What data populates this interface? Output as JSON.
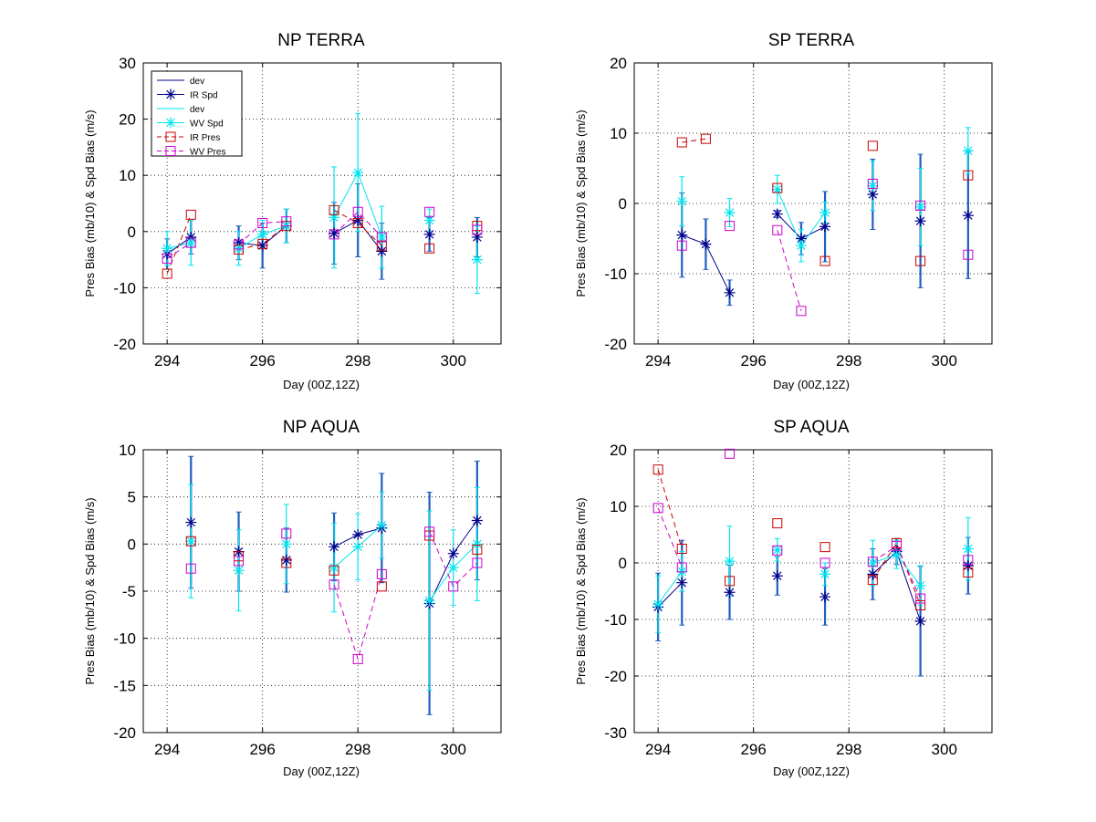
{
  "colors": {
    "ir_spd": "#00008b",
    "wv_spd": "#00e5ee",
    "ir_pres": "#cc0000",
    "wv_pres": "#cc00cc",
    "ir_dev": "#00008b",
    "wv_dev": "#00e5ee",
    "thick_dev": "#1f5fbf"
  },
  "legend": {
    "entries": [
      {
        "label": "dev",
        "series": "ir_dev"
      },
      {
        "label": "IR Spd",
        "series": "ir_spd"
      },
      {
        "label": "dev",
        "series": "wv_dev"
      },
      {
        "label": "WV Spd",
        "series": "wv_spd"
      },
      {
        "label": "IR Pres",
        "series": "ir_pres"
      },
      {
        "label": "WV Pres",
        "series": "wv_pres"
      }
    ]
  },
  "chart_data": [
    {
      "type": "line",
      "title": "NP TERRA",
      "xlabel": "Day (00Z,12Z)",
      "ylabel": "Pres Bias (mb/10) & Spd Bias (m/s)",
      "xlim": [
        293.5,
        301
      ],
      "ylim": [
        -20,
        30
      ],
      "xticks": [
        294,
        296,
        298,
        300
      ],
      "yticks": [
        -20,
        -10,
        0,
        10,
        20,
        30
      ],
      "grid": true,
      "legend": "top-left",
      "series": {
        "ir_spd": [
          [
            [
              294.0,
              -4.0,
              2.7
            ],
            [
              294.5,
              -1.0,
              3.0
            ]
          ],
          [
            [
              295.5,
              -2.0,
              3.0
            ],
            [
              296.0,
              -2.5,
              4.0
            ],
            [
              296.5,
              1.0,
              3.0
            ]
          ],
          [
            [
              297.5,
              -0.3,
              5.5
            ],
            [
              298.0,
              2.0,
              6.5
            ],
            [
              298.5,
              -3.5,
              5.0
            ]
          ],
          [
            [
              299.5,
              -0.5,
              3.0
            ]
          ],
          [
            [
              300.5,
              -1.0,
              3.5
            ]
          ]
        ],
        "wv_spd": [
          [
            [
              294.0,
              -3.0,
              3.0
            ],
            [
              294.5,
              -2.0,
              4.0
            ]
          ],
          [
            [
              295.5,
              -3.0,
              3.0
            ],
            [
              296.0,
              -0.5,
              2.5
            ],
            [
              296.5,
              1.0,
              3.0
            ]
          ],
          [
            [
              297.5,
              2.5,
              9.0
            ],
            [
              298.0,
              10.5,
              10.5
            ],
            [
              298.5,
              -1.0,
              5.5
            ]
          ],
          [
            [
              299.5,
              2.0,
              2.0
            ]
          ],
          [
            [
              300.5,
              -5.0,
              6.0
            ]
          ]
        ],
        "ir_pres": [
          [
            [
              294.0,
              -7.5
            ],
            [
              294.5,
              3.0
            ]
          ],
          [
            [
              295.5,
              -3.2
            ],
            [
              296.0,
              -2.2
            ],
            [
              296.5,
              1.0
            ]
          ],
          [
            [
              297.5,
              3.8
            ],
            [
              298.0,
              1.5
            ],
            [
              298.5,
              -2.5
            ]
          ],
          [
            [
              299.5,
              -3.0
            ]
          ],
          [
            [
              300.5,
              1.0
            ]
          ]
        ],
        "wv_pres": [
          [
            [
              294.0,
              -4.8
            ],
            [
              294.5,
              -2.0
            ]
          ],
          [
            [
              295.5,
              -2.3
            ],
            [
              296.0,
              1.5
            ],
            [
              296.5,
              1.8
            ]
          ],
          [
            [
              297.5,
              -0.5
            ],
            [
              298.0,
              3.5
            ],
            [
              298.5,
              -1.0
            ]
          ],
          [
            [
              299.5,
              3.5
            ]
          ],
          [
            [
              300.5,
              0.3
            ]
          ]
        ]
      }
    },
    {
      "type": "line",
      "title": "SP TERRA",
      "xlabel": "Day (00Z,12Z)",
      "ylabel": "Pres Bias (mb/10) & Spd Bias (m/s)",
      "xlim": [
        293.5,
        301
      ],
      "ylim": [
        -20,
        20
      ],
      "xticks": [
        294,
        296,
        298,
        300
      ],
      "yticks": [
        -20,
        -10,
        0,
        10,
        20
      ],
      "grid": true,
      "series": {
        "ir_spd": [
          [
            [
              294.5,
              -4.5,
              6.0
            ],
            [
              295.0,
              -5.8,
              3.6
            ],
            [
              295.5,
              -12.7,
              1.8
            ]
          ],
          [
            [
              296.5,
              -1.5,
              0.5
            ],
            [
              297.0,
              -5.0,
              2.3
            ],
            [
              297.5,
              -3.3,
              5.0
            ]
          ],
          [
            [
              298.5,
              1.3,
              5.0
            ]
          ],
          [
            [
              299.5,
              -2.5,
              9.5
            ]
          ],
          [
            [
              300.5,
              -1.7,
              9.0
            ]
          ]
        ],
        "wv_spd": [
          [
            [
              294.5,
              0.3,
              3.5
            ]
          ],
          [
            [
              295.5,
              -1.3,
              2.0
            ]
          ],
          [
            [
              296.5,
              2.0,
              2.0
            ],
            [
              297.0,
              -6.0,
              2.3
            ],
            [
              297.5,
              -1.3,
              1.5
            ]
          ],
          [
            [
              298.5,
              2.5,
              3.5
            ]
          ],
          [
            [
              299.5,
              -0.5,
              5.5
            ]
          ],
          [
            [
              300.5,
              7.5,
              3.3
            ]
          ]
        ],
        "ir_pres": [
          [
            [
              294.5,
              8.7
            ],
            [
              295.0,
              9.2
            ]
          ],
          [
            [
              296.5,
              2.2
            ]
          ],
          [
            [
              297.5,
              -8.2
            ]
          ],
          [
            [
              298.5,
              8.2
            ]
          ],
          [
            [
              299.5,
              -8.2
            ]
          ],
          [
            [
              300.5,
              4.0
            ]
          ]
        ],
        "wv_pres": [
          [
            [
              294.5,
              -6.0
            ]
          ],
          [
            [
              295.5,
              -3.2
            ]
          ],
          [
            [
              296.5,
              -3.8
            ],
            [
              297.0,
              -15.3
            ]
          ],
          [
            [
              298.5,
              2.8
            ]
          ],
          [
            [
              299.5,
              -0.3
            ]
          ],
          [
            [
              300.5,
              -7.3
            ]
          ]
        ]
      }
    },
    {
      "type": "line",
      "title": "NP AQUA",
      "xlabel": "Day (00Z,12Z)",
      "ylabel": "Pres Bias (mb/10) & Spd Bias (m/s)",
      "xlim": [
        293.5,
        301
      ],
      "ylim": [
        -20,
        10
      ],
      "xticks": [
        294,
        296,
        298,
        300
      ],
      "yticks": [
        -20,
        -15,
        -10,
        -5,
        0,
        5,
        10
      ],
      "grid": true,
      "series": {
        "ir_spd": [
          [
            [
              294.5,
              2.3,
              7.0
            ]
          ],
          [
            [
              295.5,
              -0.8,
              4.2
            ]
          ],
          [
            [
              296.5,
              -1.7,
              3.4
            ]
          ],
          [
            [
              297.5,
              -0.3,
              3.6
            ],
            [
              298.0,
              1.0,
              0.0
            ],
            [
              298.5,
              1.7,
              5.8
            ]
          ],
          [
            [
              299.5,
              -6.3,
              11.8
            ],
            [
              300.0,
              -1.0,
              0.0
            ],
            [
              300.5,
              2.5,
              6.3
            ]
          ]
        ],
        "wv_spd": [
          [
            [
              294.5,
              0.3,
              6.0
            ]
          ],
          [
            [
              295.5,
              -2.8,
              4.3
            ]
          ],
          [
            [
              296.5,
              0.0,
              4.2
            ]
          ],
          [
            [
              297.5,
              -2.5,
              4.7
            ],
            [
              298.0,
              -0.3,
              3.5
            ],
            [
              298.5,
              2.0,
              3.5
            ]
          ],
          [
            [
              299.5,
              -6.0,
              9.5
            ],
            [
              300.0,
              -2.5,
              4.0
            ],
            [
              300.5,
              0.0,
              6.0
            ]
          ]
        ],
        "ir_pres": [
          [
            [
              294.5,
              0.3
            ]
          ],
          [
            [
              295.5,
              -1.3
            ]
          ],
          [
            [
              296.5,
              -2.0
            ]
          ],
          [
            [
              297.5,
              -2.8
            ]
          ],
          [
            [
              298.5,
              -4.5
            ]
          ],
          [
            [
              299.5,
              0.9
            ]
          ],
          [
            [
              300.5,
              -0.6
            ]
          ]
        ],
        "wv_pres": [
          [
            [
              294.5,
              -2.6
            ]
          ],
          [
            [
              295.5,
              -1.8
            ]
          ],
          [
            [
              296.5,
              1.1
            ]
          ],
          [
            [
              297.5,
              -4.3
            ],
            [
              298.0,
              -12.2
            ],
            [
              298.5,
              -3.2
            ]
          ],
          [
            [
              299.5,
              1.3
            ],
            [
              300.0,
              -4.5
            ],
            [
              300.5,
              -2.0
            ]
          ]
        ]
      }
    },
    {
      "type": "line",
      "title": "SP AQUA",
      "xlabel": "Day (00Z,12Z)",
      "ylabel": "Pres Bias (mb/10) & Spd Bias (m/s)",
      "xlim": [
        293.5,
        301
      ],
      "ylim": [
        -30,
        20
      ],
      "xticks": [
        294,
        296,
        298,
        300
      ],
      "yticks": [
        -30,
        -20,
        -10,
        0,
        10,
        20
      ],
      "grid": true,
      "series": {
        "ir_spd": [
          [
            [
              294.0,
              -7.8,
              6.0
            ],
            [
              294.5,
              -3.5,
              7.5
            ]
          ],
          [
            [
              295.5,
              -5.2,
              4.8
            ]
          ],
          [
            [
              296.5,
              -2.3,
              3.4
            ]
          ],
          [
            [
              297.5,
              -6.0,
              5.0
            ]
          ],
          [
            [
              298.5,
              -2.0,
              4.5
            ],
            [
              299.0,
              2.0,
              2.3
            ],
            [
              299.5,
              -10.3,
              9.7
            ]
          ],
          [
            [
              300.5,
              -0.5,
              5.0
            ]
          ]
        ],
        "wv_spd": [
          [
            [
              294.0,
              -7.3,
              5.0
            ],
            [
              294.5,
              -1.5,
              3.5
            ]
          ],
          [
            [
              295.5,
              0.3,
              6.2
            ]
          ],
          [
            [
              296.5,
              2.3,
              2.0
            ]
          ],
          [
            [
              297.5,
              -2.0,
              2.0
            ]
          ],
          [
            [
              298.5,
              0.0,
              4.0
            ],
            [
              299.0,
              1.5,
              2.5
            ],
            [
              299.5,
              -4.0,
              3.5
            ]
          ],
          [
            [
              300.5,
              2.5,
              5.5
            ]
          ]
        ],
        "ir_pres": [
          [
            [
              294.0,
              16.5
            ],
            [
              294.5,
              2.5
            ]
          ],
          [
            [
              295.5,
              -3.2
            ]
          ],
          [
            [
              296.5,
              7.0
            ]
          ],
          [
            [
              297.5,
              2.8
            ]
          ],
          [
            [
              298.5,
              -3.0
            ],
            [
              299.0,
              3.5
            ],
            [
              299.5,
              -7.5
            ]
          ],
          [
            [
              300.5,
              -1.7
            ]
          ]
        ],
        "wv_pres": [
          [
            [
              294.0,
              9.7
            ],
            [
              294.5,
              -0.8
            ]
          ],
          [
            [
              295.5,
              19.3
            ]
          ],
          [
            [
              296.5,
              2.2
            ]
          ],
          [
            [
              297.5,
              0.0
            ]
          ],
          [
            [
              298.5,
              0.2
            ],
            [
              299.0,
              3.0
            ],
            [
              299.5,
              -6.3
            ]
          ],
          [
            [
              300.5,
              0.5
            ]
          ]
        ]
      }
    }
  ]
}
